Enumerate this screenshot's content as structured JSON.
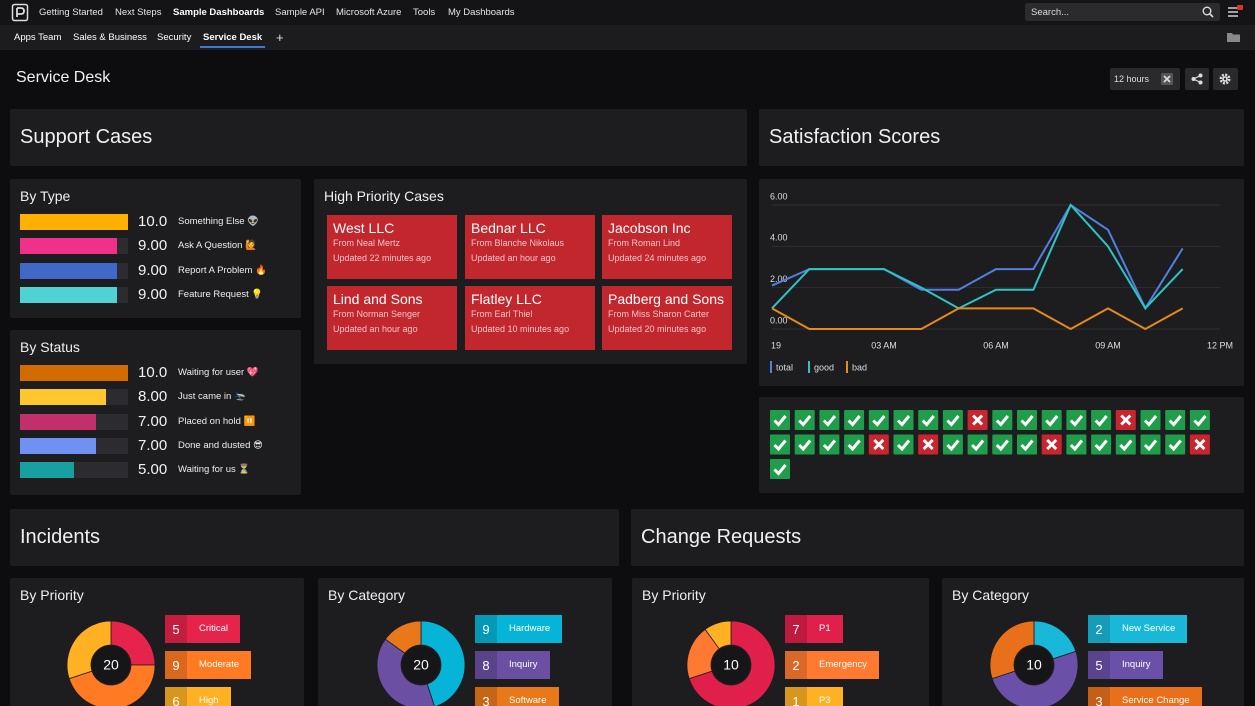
{
  "nav": {
    "items": [
      "Getting Started",
      "Next Steps",
      "Sample Dashboards",
      "Sample API",
      "Microsoft Azure",
      "Tools",
      "My Dashboards"
    ],
    "active": 2,
    "search_placeholder": "Search..."
  },
  "tabs": {
    "items": [
      "Apps Team",
      "Sales & Business",
      "Security",
      "Service Desk"
    ],
    "active": 3,
    "add": "+"
  },
  "page": {
    "title": "Service Desk",
    "time_range": "12 hours"
  },
  "sections": {
    "support_cases": "Support Cases",
    "incidents": "Incidents",
    "change_requests": "Change Requests"
  },
  "cases": {
    "title": "High Priority Cases",
    "items": [
      {
        "name": "West LLC",
        "from": "From Neal Mertz",
        "updated": "Updated 22 minutes ago"
      },
      {
        "name": "Bednar LLC",
        "from": "From Blanche Nikolaus",
        "updated": "Updated an hour ago"
      },
      {
        "name": "Jacobson Inc",
        "from": "From Roman Lind",
        "updated": "Updated 24 minutes ago"
      },
      {
        "name": "Lind and Sons",
        "from": "From Norman Senger",
        "updated": "Updated an hour ago"
      },
      {
        "name": "Flatley LLC",
        "from": "From Earl Thiel",
        "updated": "Updated 10 minutes ago"
      },
      {
        "name": "Padberg and Sons",
        "from": "From Miss Sharon Carter",
        "updated": "Updated 20 minutes ago"
      }
    ],
    "color": "#c1272d"
  },
  "checks": {
    "values": [
      true,
      true,
      true,
      true,
      true,
      true,
      true,
      true,
      false,
      true,
      true,
      true,
      true,
      true,
      false,
      true,
      true,
      true,
      true,
      true,
      true,
      true,
      false,
      true,
      false,
      true,
      true,
      true,
      true,
      false,
      true,
      true,
      true,
      true,
      true,
      false,
      true
    ],
    "good_color": "#1f9d4a",
    "bad_color": "#c8262f"
  },
  "chart_data": [
    {
      "type": "bar",
      "orientation": "horizontal",
      "title": "By Type",
      "categories": [
        "Something Else 👽",
        "Ask A Question 🙋",
        "Report A Problem 🔥",
        "Feature Request 💡"
      ],
      "values": [
        10,
        9,
        9,
        9
      ],
      "value_labels": [
        "10.0",
        "9.00",
        "9.00",
        "9.00"
      ],
      "colors": [
        "#ffb000",
        "#ef3189",
        "#3f68c9",
        "#4fd2d2"
      ]
    },
    {
      "type": "bar",
      "orientation": "horizontal",
      "title": "By Status",
      "categories": [
        "Waiting for user 💖",
        "Just came in 🛬",
        "Placed on hold ⏸️",
        "Done and dusted 😎",
        "Waiting for us ⏳"
      ],
      "values": [
        10,
        8,
        7,
        7,
        5
      ],
      "value_labels": [
        "10.0",
        "8.00",
        "7.00",
        "7.00",
        "5.00"
      ],
      "colors": [
        "#d26b00",
        "#ffc62e",
        "#c1306b",
        "#6f91f2",
        "#189f9f"
      ]
    },
    {
      "type": "line",
      "title": "Satisfaction Scores",
      "x": [
        0,
        1,
        2,
        3,
        4,
        5,
        6,
        7,
        8,
        9,
        10,
        11
      ],
      "series": [
        {
          "name": "total",
          "color": "#5080e2",
          "values": [
            2.1,
            2.9,
            2.9,
            2.9,
            1.9,
            1.9,
            2.9,
            2.9,
            6.0,
            4.8,
            1.0,
            3.9
          ]
        },
        {
          "name": "good",
          "color": "#2fc4c4",
          "values": [
            1.0,
            2.9,
            2.9,
            2.9,
            2.0,
            1.0,
            1.9,
            1.9,
            6.0,
            4.0,
            1.0,
            2.9
          ]
        },
        {
          "name": "bad",
          "color": "#e8891a",
          "values": [
            1.0,
            0,
            0,
            0,
            0,
            1.0,
            1.0,
            1.0,
            0,
            1.0,
            0,
            1.0
          ]
        }
      ],
      "xlim": [
        0,
        12
      ],
      "xticks": [
        {
          "value": 0,
          "label": "19"
        },
        {
          "value": 3,
          "label": "03 AM"
        },
        {
          "value": 6,
          "label": "06 AM"
        },
        {
          "value": 9,
          "label": "09 AM"
        },
        {
          "value": 12,
          "label": "12 PM"
        }
      ],
      "ylim": [
        0,
        6
      ],
      "yticks": [
        {
          "value": 0,
          "label": "0.00"
        },
        {
          "value": 2,
          "label": "2.00"
        },
        {
          "value": 4,
          "label": "4.00"
        },
        {
          "value": 6,
          "label": "6.00"
        }
      ],
      "grid": true
    },
    {
      "type": "donut",
      "title": "By Priority",
      "total": 20,
      "categories": [
        "Critical",
        "Moderate",
        "High"
      ],
      "values": [
        5,
        9,
        6
      ],
      "colors": [
        "#e5234b",
        "#ff7a22",
        "#ffb023"
      ]
    },
    {
      "type": "donut",
      "title": "By Category",
      "total": 20,
      "categories": [
        "Hardware",
        "Inquiry",
        "Software"
      ],
      "values": [
        9,
        8,
        3
      ],
      "colors": [
        "#06b4d8",
        "#6b4fa2",
        "#e8781a"
      ]
    },
    {
      "type": "donut",
      "title": "By Priority",
      "total": 10,
      "categories": [
        "P1",
        "Emergency",
        "P3"
      ],
      "values": [
        7,
        2,
        1
      ],
      "colors": [
        "#e01f4b",
        "#ff7a30",
        "#ffb023"
      ]
    },
    {
      "type": "donut",
      "title": "By Category",
      "total": 10,
      "categories": [
        "New Service",
        "Inquiry",
        "Service Change"
      ],
      "values": [
        2,
        5,
        3
      ],
      "colors": [
        "#19b8d8",
        "#6a50a8",
        "#e8701a"
      ]
    }
  ]
}
